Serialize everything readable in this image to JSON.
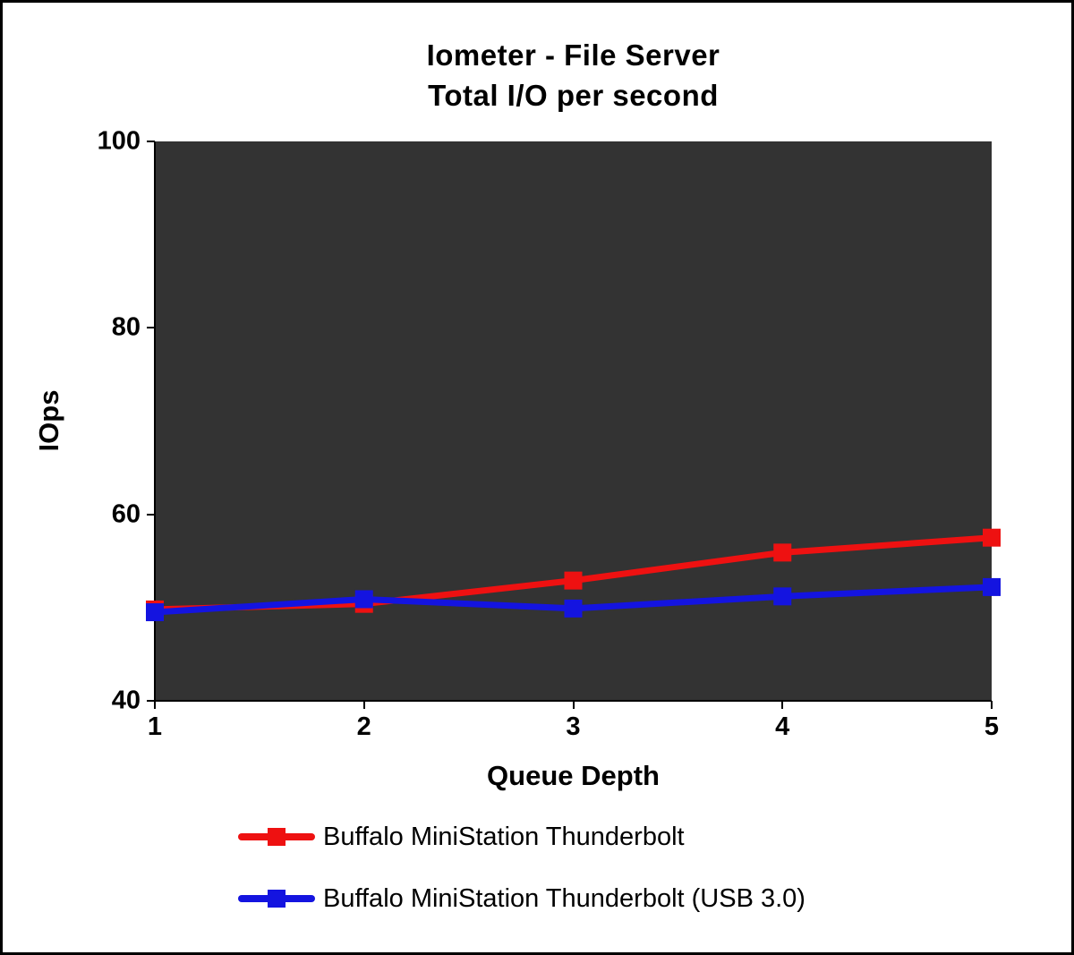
{
  "frame": {
    "background": "#ffffff",
    "border_color": "#000000"
  },
  "chart_data": {
    "type": "line",
    "title_line1": "Iometer - File Server",
    "title_line2": "Total I/O per second",
    "xlabel": "Queue Depth",
    "ylabel": "IOps",
    "plot_background": "#333333",
    "grid": false,
    "legend_position": "bottom-left",
    "x": [
      1,
      2,
      3,
      4,
      5
    ],
    "xticks": [
      "1",
      "2",
      "3",
      "4",
      "5"
    ],
    "yticks": [
      40,
      60,
      80,
      100
    ],
    "xlim": [
      1,
      5
    ],
    "ylim": [
      40,
      100
    ],
    "series": [
      {
        "name": "Buffalo MiniStation Thunderbolt",
        "color": "#ee1111",
        "values": [
          49.8,
          50.4,
          52.9,
          55.9,
          57.5
        ]
      },
      {
        "name": "Buffalo MiniStation Thunderbolt (USB 3.0)",
        "color": "#1414e0",
        "values": [
          49.5,
          50.9,
          49.9,
          51.2,
          52.2
        ]
      }
    ]
  }
}
